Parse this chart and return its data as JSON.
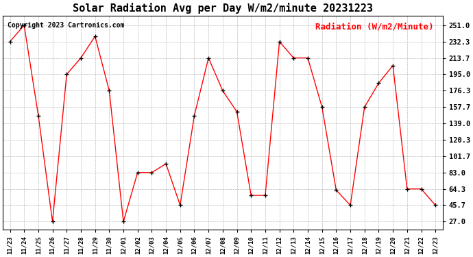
{
  "title": "Solar Radiation Avg per Day W/m2/minute 20231223",
  "copyright_text": "Copyright 2023 Cartronics.com",
  "legend_text": "Radiation (W/m2/Minute)",
  "dates": [
    "11/23",
    "11/24",
    "11/25",
    "11/26",
    "11/27",
    "11/28",
    "11/29",
    "11/30",
    "12/01",
    "12/02",
    "12/03",
    "12/04",
    "12/05",
    "12/06",
    "12/07",
    "12/08",
    "12/09",
    "12/10",
    "12/11",
    "12/12",
    "12/13",
    "12/14",
    "12/15",
    "12/16",
    "12/17",
    "12/18",
    "12/19",
    "12/20",
    "12/21",
    "12/22",
    "12/23"
  ],
  "values": [
    232.3,
    251.0,
    148.0,
    27.0,
    195.0,
    213.7,
    238.3,
    176.3,
    27.0,
    83.0,
    83.0,
    93.0,
    45.7,
    148.0,
    213.7,
    176.3,
    152.3,
    57.0,
    57.0,
    232.3,
    213.7,
    213.7,
    157.7,
    63.0,
    45.7,
    157.7,
    185.0,
    205.0,
    64.3,
    64.3,
    45.7
  ],
  "line_color": "#FF0000",
  "marker_color": "#000000",
  "bg_color": "#FFFFFF",
  "grid_color": "#BBBBBB",
  "yticks": [
    27.0,
    45.7,
    64.3,
    83.0,
    101.7,
    120.3,
    139.0,
    157.7,
    176.3,
    195.0,
    213.7,
    232.3,
    251.0
  ],
  "ylim": [
    18.0,
    262.0
  ],
  "title_fontsize": 11,
  "legend_fontsize": 9,
  "copyright_fontsize": 7,
  "tick_fontsize": 7.5,
  "xtick_fontsize": 6.5
}
